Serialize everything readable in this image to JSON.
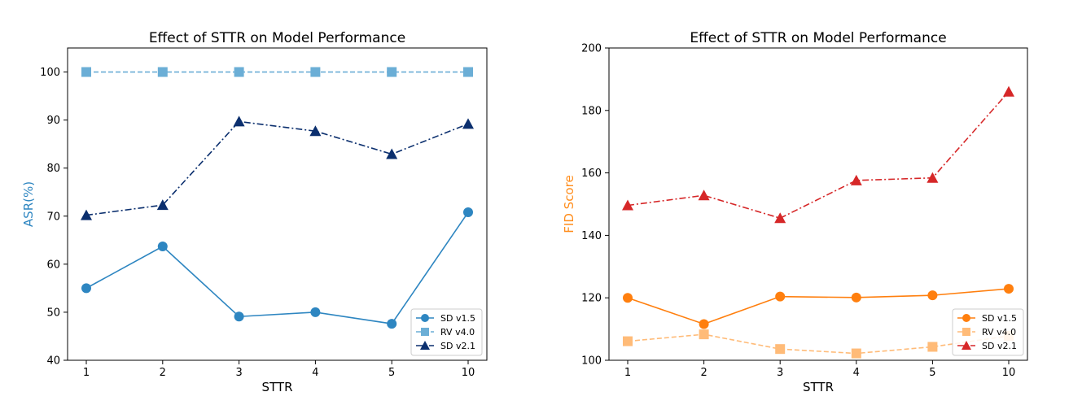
{
  "chart_data": [
    {
      "type": "line",
      "title": "Effect of STTR on Model Performance",
      "xlabel": "STTR",
      "ylabel": "ASR(%)",
      "ylabel_color": "#2e86c1",
      "categories": [
        "1",
        "2",
        "3",
        "4",
        "5",
        "10"
      ],
      "ylim": [
        40,
        105
      ],
      "yticks": [
        40,
        50,
        60,
        70,
        80,
        90,
        100
      ],
      "legend_position": "lower-right",
      "series": [
        {
          "name": "SD v1.5",
          "values": [
            55.0,
            63.7,
            49.1,
            50.0,
            47.6,
            70.8
          ],
          "color": "#2e86c1",
          "marker": "circle",
          "linestyle": "solid"
        },
        {
          "name": "RV v4.0",
          "values": [
            100,
            100,
            100,
            100,
            100,
            100
          ],
          "color": "#6baed6",
          "marker": "square",
          "linestyle": "dashed"
        },
        {
          "name": "SD v2.1",
          "values": [
            70.2,
            72.3,
            89.7,
            87.7,
            82.9,
            89.2
          ],
          "color": "#0b2f6e",
          "marker": "triangle",
          "linestyle": "dashdot"
        }
      ]
    },
    {
      "type": "line",
      "title": "Effect of STTR on Model Performance",
      "xlabel": "STTR",
      "ylabel": "FID Score",
      "ylabel_color": "#ff8c1a",
      "categories": [
        "1",
        "2",
        "3",
        "4",
        "5",
        "10"
      ],
      "ylim": [
        100,
        200
      ],
      "yticks": [
        100,
        120,
        140,
        160,
        180,
        200
      ],
      "legend_position": "lower-right",
      "series": [
        {
          "name": "SD v1.5",
          "values": [
            120.0,
            111.6,
            120.4,
            120.1,
            120.8,
            122.9
          ],
          "color": "#ff7f0e",
          "marker": "circle",
          "linestyle": "solid"
        },
        {
          "name": "RV v4.0",
          "values": [
            106.1,
            108.3,
            103.6,
            102.2,
            104.3,
            107.8
          ],
          "color": "#ffbb78",
          "marker": "square",
          "linestyle": "dashed"
        },
        {
          "name": "SD v2.1",
          "values": [
            149.6,
            152.8,
            145.5,
            157.6,
            158.4,
            186.0
          ],
          "color": "#d62728",
          "marker": "triangle",
          "linestyle": "dashdot"
        }
      ]
    }
  ]
}
